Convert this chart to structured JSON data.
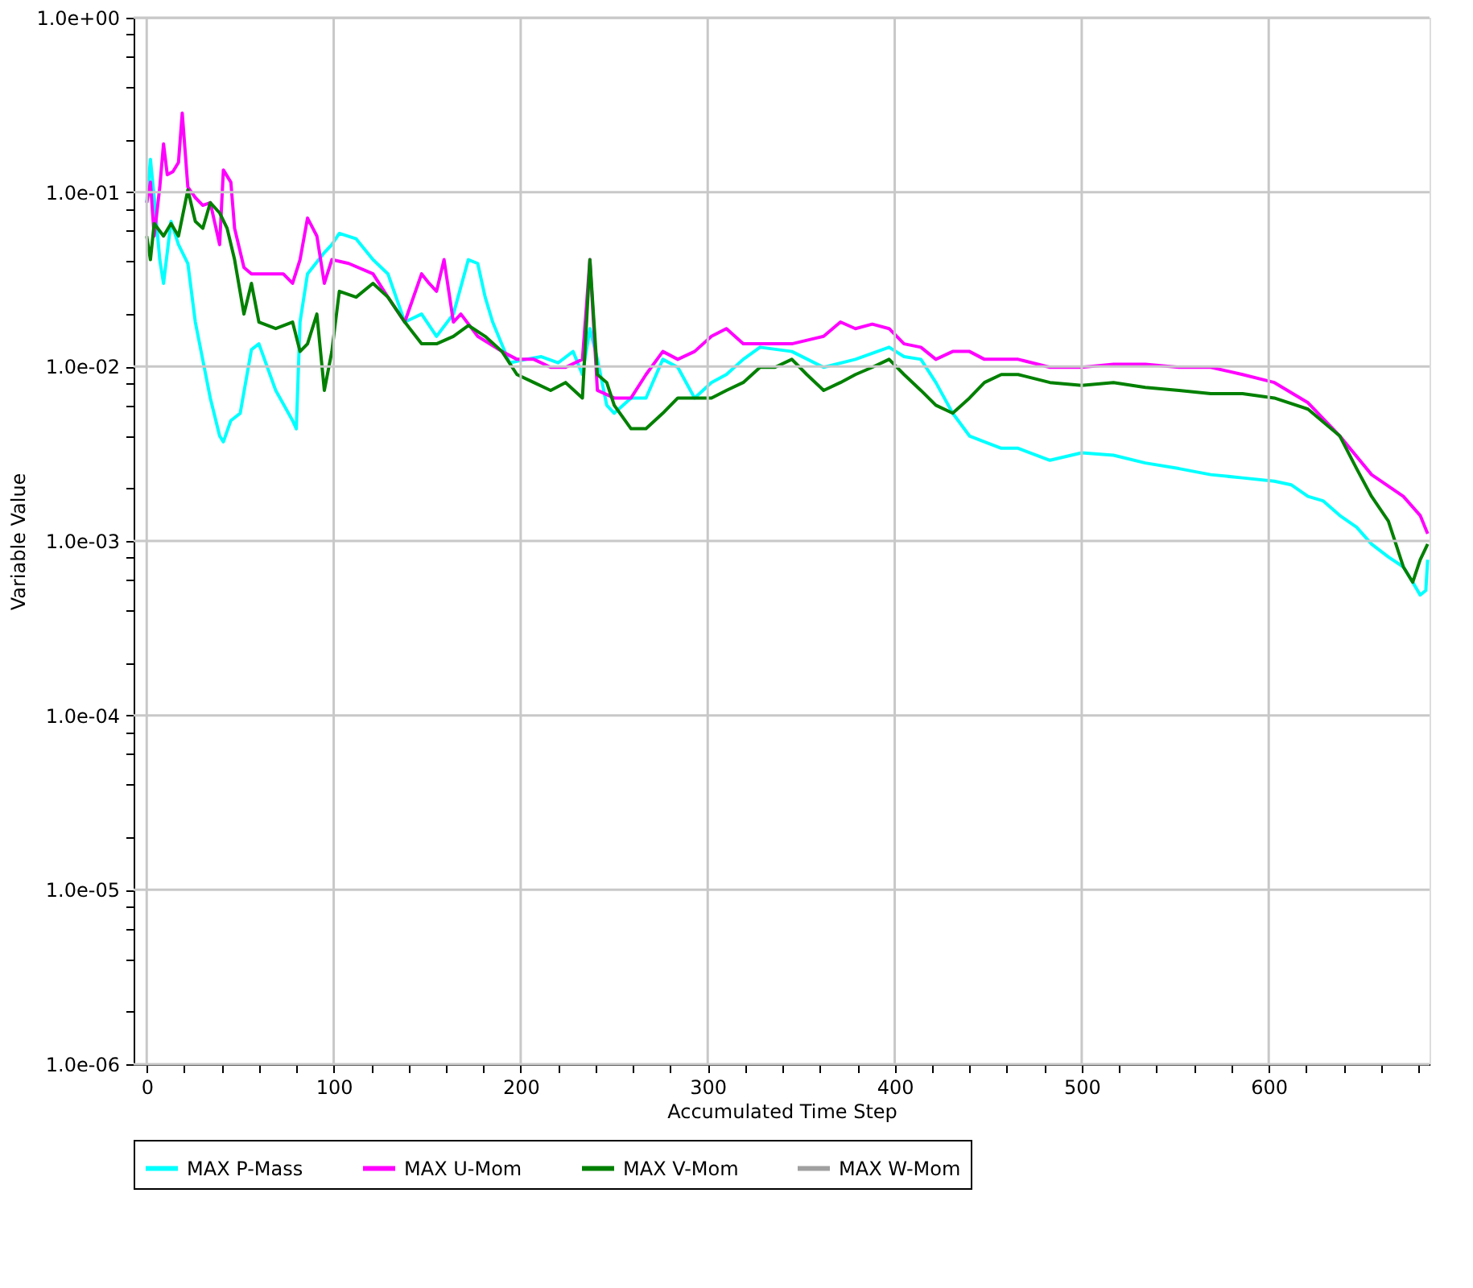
{
  "chart_data": {
    "type": "line",
    "xlabel": "Accumulated Time Step",
    "ylabel": "Variable Value",
    "log": "y",
    "grid": true,
    "legend": "bottom",
    "line_style": "solid",
    "marker": "none",
    "xlim": [
      -7,
      686
    ],
    "xticks": [
      0,
      {
        "value": 20,
        "label": null
      },
      {
        "value": 40,
        "label": null
      },
      {
        "value": 60,
        "label": null
      },
      {
        "value": 80,
        "label": null
      },
      100,
      {
        "value": 120,
        "label": null
      },
      {
        "value": 140,
        "label": null
      },
      {
        "value": 160,
        "label": null
      },
      {
        "value": 180,
        "label": null
      },
      200,
      {
        "value": 220,
        "label": null
      },
      {
        "value": 240,
        "label": null
      },
      {
        "value": 260,
        "label": null
      },
      {
        "value": 280,
        "label": null
      },
      300,
      {
        "value": 320,
        "label": null
      },
      {
        "value": 340,
        "label": null
      },
      {
        "value": 360,
        "label": null
      },
      {
        "value": 380,
        "label": null
      },
      400,
      {
        "value": 420,
        "label": null
      },
      {
        "value": 440,
        "label": null
      },
      {
        "value": 460,
        "label": null
      },
      {
        "value": 480,
        "label": null
      },
      500,
      {
        "value": 520,
        "label": null
      },
      {
        "value": 540,
        "label": null
      },
      {
        "value": 560,
        "label": null
      },
      {
        "value": 580,
        "label": null
      },
      600,
      {
        "value": 620,
        "label": null
      },
      {
        "value": 640,
        "label": null
      },
      {
        "value": 660,
        "label": null
      },
      {
        "value": 680,
        "label": null
      }
    ],
    "ylim": [
      1e-06,
      1
    ],
    "yticks": [
      {
        "value": 1e-06,
        "label": "1.0e-06"
      },
      {
        "value": 2e-06,
        "label": null
      },
      {
        "value": 4e-06,
        "label": null
      },
      {
        "value": 6e-06,
        "label": null
      },
      {
        "value": 8e-06,
        "label": null
      },
      {
        "value": 1e-05,
        "label": "1.0e-05"
      },
      {
        "value": 2e-05,
        "label": null
      },
      {
        "value": 4e-05,
        "label": null
      },
      {
        "value": 6e-05,
        "label": null
      },
      {
        "value": 8e-05,
        "label": null
      },
      {
        "value": 0.0001,
        "label": "1.0e-04"
      },
      {
        "value": 0.0002,
        "label": null
      },
      {
        "value": 0.0004,
        "label": null
      },
      {
        "value": 0.0006,
        "label": null
      },
      {
        "value": 0.0008,
        "label": null
      },
      {
        "value": 0.001,
        "label": "1.0e-03"
      },
      {
        "value": 0.002,
        "label": null
      },
      {
        "value": 0.004,
        "label": null
      },
      {
        "value": 0.006,
        "label": null
      },
      {
        "value": 0.008,
        "label": null
      },
      {
        "value": 0.01,
        "label": "1.0e-02"
      },
      {
        "value": 0.02,
        "label": null
      },
      {
        "value": 0.04,
        "label": null
      },
      {
        "value": 0.06,
        "label": null
      },
      {
        "value": 0.08,
        "label": null
      },
      {
        "value": 0.1,
        "label": "1.0e-01"
      },
      {
        "value": 0.2,
        "label": null
      },
      {
        "value": 0.4,
        "label": null
      },
      {
        "value": 0.6,
        "label": null
      },
      {
        "value": 0.8,
        "label": null
      },
      {
        "value": 1,
        "label": "1.0e+00"
      }
    ],
    "series": [
      {
        "name": "MAX P-Mass",
        "color": "#00ffff",
        "x": [
          0,
          2,
          4,
          7,
          9,
          13,
          17,
          22,
          26,
          34,
          39,
          41,
          45,
          50,
          56,
          60,
          69,
          78,
          80,
          82,
          86,
          95,
          99,
          103,
          112,
          121,
          129,
          138,
          147,
          155,
          164,
          172,
          177,
          181,
          185,
          194,
          203,
          211,
          220,
          228,
          233,
          237,
          241,
          246,
          250,
          259,
          267,
          276,
          284,
          293,
          302,
          310,
          319,
          328,
          345,
          362,
          379,
          397,
          405,
          414,
          422,
          431,
          440,
          448,
          457,
          466,
          483,
          500,
          517,
          534,
          552,
          569,
          586,
          603,
          612,
          621,
          629,
          638,
          647,
          655,
          664,
          672,
          677,
          681,
          684,
          685
        ],
        "values": [
          0.087,
          0.154,
          0.093,
          0.041,
          0.03,
          0.068,
          0.05,
          0.039,
          0.018,
          0.0066,
          0.004,
          0.0037,
          0.0049,
          0.0054,
          0.0125,
          0.0135,
          0.0073,
          0.0049,
          0.0044,
          0.018,
          0.034,
          0.045,
          0.05,
          0.058,
          0.054,
          0.041,
          0.034,
          0.018,
          0.02,
          0.0149,
          0.02,
          0.041,
          0.039,
          0.025,
          0.018,
          0.0105,
          0.011,
          0.0114,
          0.0105,
          0.0122,
          0.009,
          0.0165,
          0.011,
          0.006,
          0.0054,
          0.0066,
          0.0066,
          0.011,
          0.0099,
          0.0066,
          0.0081,
          0.009,
          0.011,
          0.0129,
          0.0122,
          0.0099,
          0.011,
          0.0129,
          0.0114,
          0.011,
          0.0081,
          0.0054,
          0.004,
          0.0037,
          0.0034,
          0.0034,
          0.0029,
          0.0032,
          0.0031,
          0.0028,
          0.0026,
          0.0024,
          0.0023,
          0.0022,
          0.0021,
          0.0018,
          0.0017,
          0.0014,
          0.0012,
          0.00096,
          0.00081,
          0.00071,
          0.00058,
          0.00049,
          0.00052,
          0.00078
        ]
      },
      {
        "name": "MAX U-Mom",
        "color": "#ff00ff",
        "x": [
          0,
          2,
          4,
          7,
          9,
          11,
          14,
          17,
          19,
          22,
          26,
          30,
          34,
          39,
          41,
          45,
          47,
          52,
          56,
          65,
          73,
          78,
          82,
          86,
          91,
          95,
          99,
          108,
          121,
          129,
          138,
          147,
          151,
          155,
          159,
          164,
          168,
          177,
          190,
          198,
          207,
          216,
          224,
          233,
          237,
          241,
          250,
          259,
          267,
          276,
          284,
          293,
          302,
          310,
          319,
          328,
          345,
          362,
          371,
          379,
          388,
          397,
          405,
          414,
          422,
          431,
          440,
          448,
          466,
          483,
          500,
          517,
          534,
          552,
          569,
          586,
          603,
          621,
          638,
          655,
          672,
          681,
          685
        ],
        "values": [
          0.087,
          0.114,
          0.056,
          0.107,
          0.189,
          0.126,
          0.131,
          0.148,
          0.284,
          0.107,
          0.093,
          0.084,
          0.087,
          0.05,
          0.134,
          0.114,
          0.062,
          0.037,
          0.034,
          0.034,
          0.034,
          0.03,
          0.041,
          0.071,
          0.056,
          0.03,
          0.041,
          0.039,
          0.034,
          0.025,
          0.018,
          0.034,
          0.03,
          0.027,
          0.041,
          0.018,
          0.02,
          0.0149,
          0.0122,
          0.011,
          0.011,
          0.0099,
          0.0099,
          0.011,
          0.041,
          0.0073,
          0.0066,
          0.0066,
          0.009,
          0.0122,
          0.011,
          0.0122,
          0.0149,
          0.0165,
          0.0135,
          0.0135,
          0.0135,
          0.0149,
          0.018,
          0.0165,
          0.0175,
          0.0165,
          0.0135,
          0.0129,
          0.011,
          0.0122,
          0.0122,
          0.011,
          0.011,
          0.0099,
          0.0099,
          0.0103,
          0.0103,
          0.0099,
          0.0099,
          0.009,
          0.0081,
          0.0062,
          0.004,
          0.0024,
          0.0018,
          0.0014,
          0.0011
        ]
      },
      {
        "name": "MAX V-Mom",
        "color": "#008000",
        "x": [
          0,
          2,
          4,
          9,
          13,
          17,
          22,
          26,
          30,
          34,
          39,
          43,
          47,
          52,
          56,
          60,
          69,
          78,
          82,
          86,
          91,
          95,
          99,
          103,
          112,
          121,
          129,
          138,
          147,
          155,
          164,
          172,
          181,
          190,
          198,
          207,
          216,
          224,
          233,
          237,
          241,
          246,
          250,
          259,
          267,
          276,
          284,
          293,
          302,
          310,
          319,
          328,
          336,
          345,
          353,
          362,
          371,
          379,
          388,
          397,
          405,
          414,
          422,
          431,
          440,
          448,
          457,
          466,
          483,
          500,
          517,
          534,
          552,
          569,
          586,
          603,
          621,
          638,
          647,
          655,
          664,
          672,
          677,
          681,
          685
        ],
        "values": [
          0.056,
          0.041,
          0.066,
          0.056,
          0.066,
          0.056,
          0.103,
          0.068,
          0.062,
          0.087,
          0.076,
          0.062,
          0.041,
          0.02,
          0.03,
          0.018,
          0.0165,
          0.018,
          0.0122,
          0.0135,
          0.02,
          0.0073,
          0.0122,
          0.027,
          0.025,
          0.03,
          0.025,
          0.018,
          0.0135,
          0.0135,
          0.0149,
          0.0172,
          0.0149,
          0.0122,
          0.009,
          0.0081,
          0.0073,
          0.0081,
          0.0066,
          0.041,
          0.009,
          0.0081,
          0.006,
          0.0044,
          0.0044,
          0.0054,
          0.0066,
          0.0066,
          0.0066,
          0.0073,
          0.0081,
          0.0099,
          0.0099,
          0.011,
          0.009,
          0.0073,
          0.0081,
          0.009,
          0.0099,
          0.011,
          0.009,
          0.0073,
          0.006,
          0.0054,
          0.0066,
          0.0081,
          0.009,
          0.009,
          0.0081,
          0.0078,
          0.0081,
          0.0076,
          0.0073,
          0.007,
          0.007,
          0.0066,
          0.0057,
          0.004,
          0.0026,
          0.0018,
          0.0013,
          0.00071,
          0.00058,
          0.00078,
          0.00096
        ]
      },
      {
        "name": "MAX W-Mom",
        "color": "#a0a0a0"
      }
    ]
  }
}
